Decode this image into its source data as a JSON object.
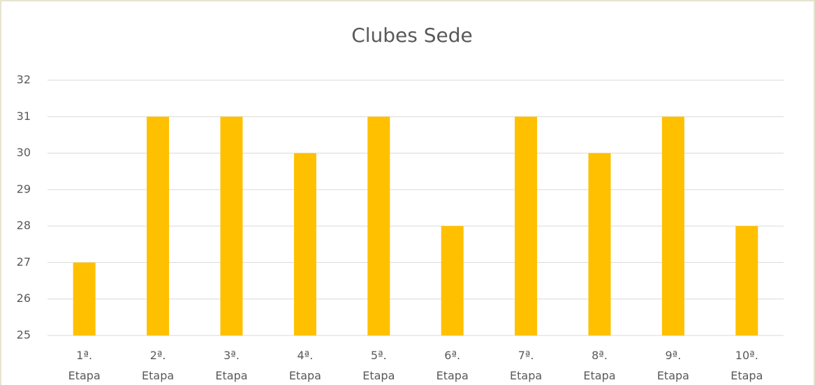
{
  "chart_data": {
    "type": "bar",
    "title": "Clubes Sede",
    "categories": [
      "1ª. Etapa",
      "2ª. Etapa",
      "3ª. Etapa",
      "4ª. Etapa",
      "5ª. Etapa",
      "6ª. Etapa",
      "7ª. Etapa",
      "8ª. Etapa",
      "9ª. Etapa",
      "10ª. Etapa"
    ],
    "values": [
      27,
      31,
      31,
      30,
      31,
      28,
      31,
      30,
      31,
      28
    ],
    "color": "#ffc000",
    "ylim": [
      25,
      32
    ],
    "yticks": [
      25,
      26,
      27,
      28,
      29,
      30,
      31,
      32
    ],
    "grid": true
  }
}
